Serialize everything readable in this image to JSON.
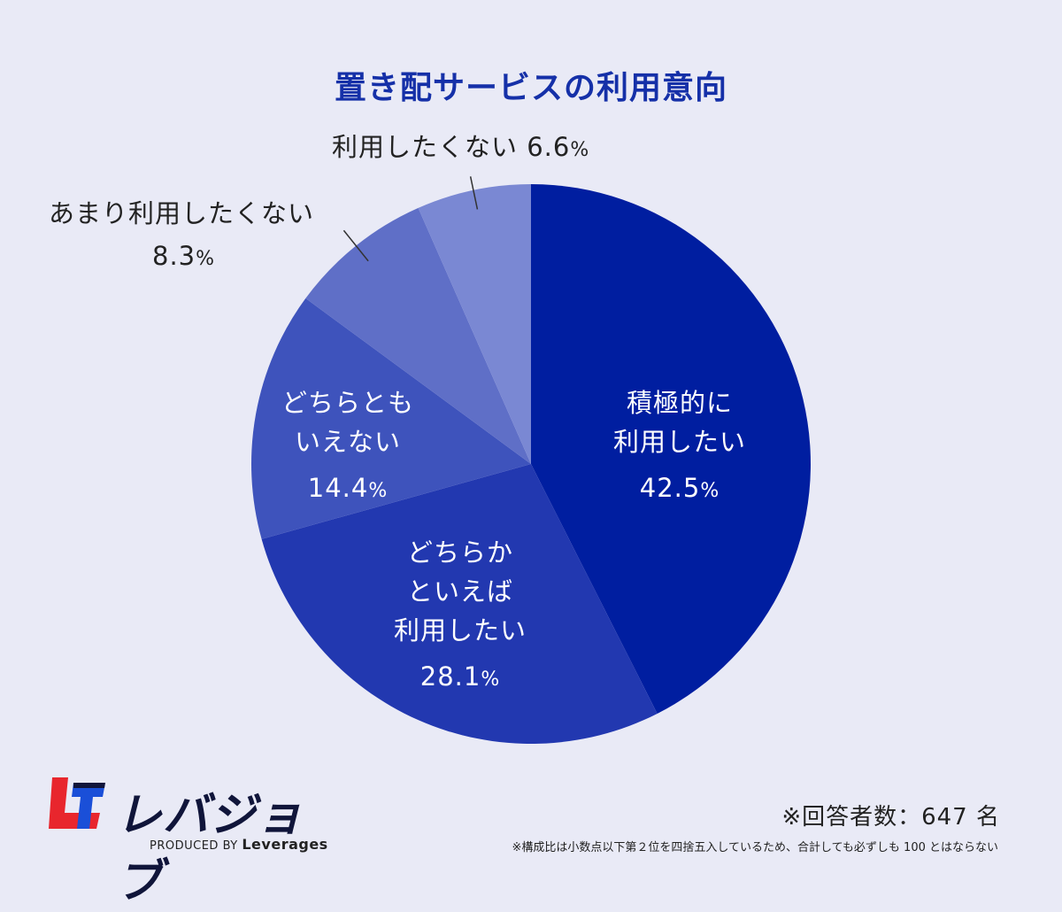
{
  "chart_data": {
    "type": "pie",
    "title": "置き配サービスの利用意向",
    "slices": [
      {
        "label": "積極的に利用したい",
        "value": 42.5,
        "color": "#001ea0"
      },
      {
        "label": "どちらかといえば利用したい",
        "value": 28.1,
        "color": "#2238b0"
      },
      {
        "label": "どちらともいえない",
        "value": 14.4,
        "color": "#3e53bc"
      },
      {
        "label": "あまり利用したくない",
        "value": 8.3,
        "color": "#5f6fc7"
      },
      {
        "label": "利用したくない",
        "value": 6.6,
        "color": "#7a88d3"
      }
    ]
  },
  "labels": {
    "s1_line1": "積極的に",
    "s1_line2": "利用したい",
    "s1_num": "42.5",
    "s2_line1": "どちらか",
    "s2_line2": "といえば",
    "s2_line3": "利用したい",
    "s2_num": "28.1",
    "s3_line1": "どちらとも",
    "s3_line2": "いえない",
    "s3_num": "14.4",
    "s4_line1": "あまり利用したくない",
    "s4_num": "8.3",
    "s5_text": "利用したくない",
    "s5_num": "6.6",
    "percent": "%"
  },
  "logo": {
    "text": "レバジョブ",
    "produced_by": "PRODUCED BY",
    "brand": "Leverages",
    "colors": {
      "red": "#e8262d",
      "navy": "#10153a",
      "blue": "#1a4fd8"
    }
  },
  "footer": {
    "respondents": "※回答者数：647 名",
    "note": "※構成比は小数点以下第２位を四捨五入しているため、合計しても必ずしも 100 とはならない"
  }
}
